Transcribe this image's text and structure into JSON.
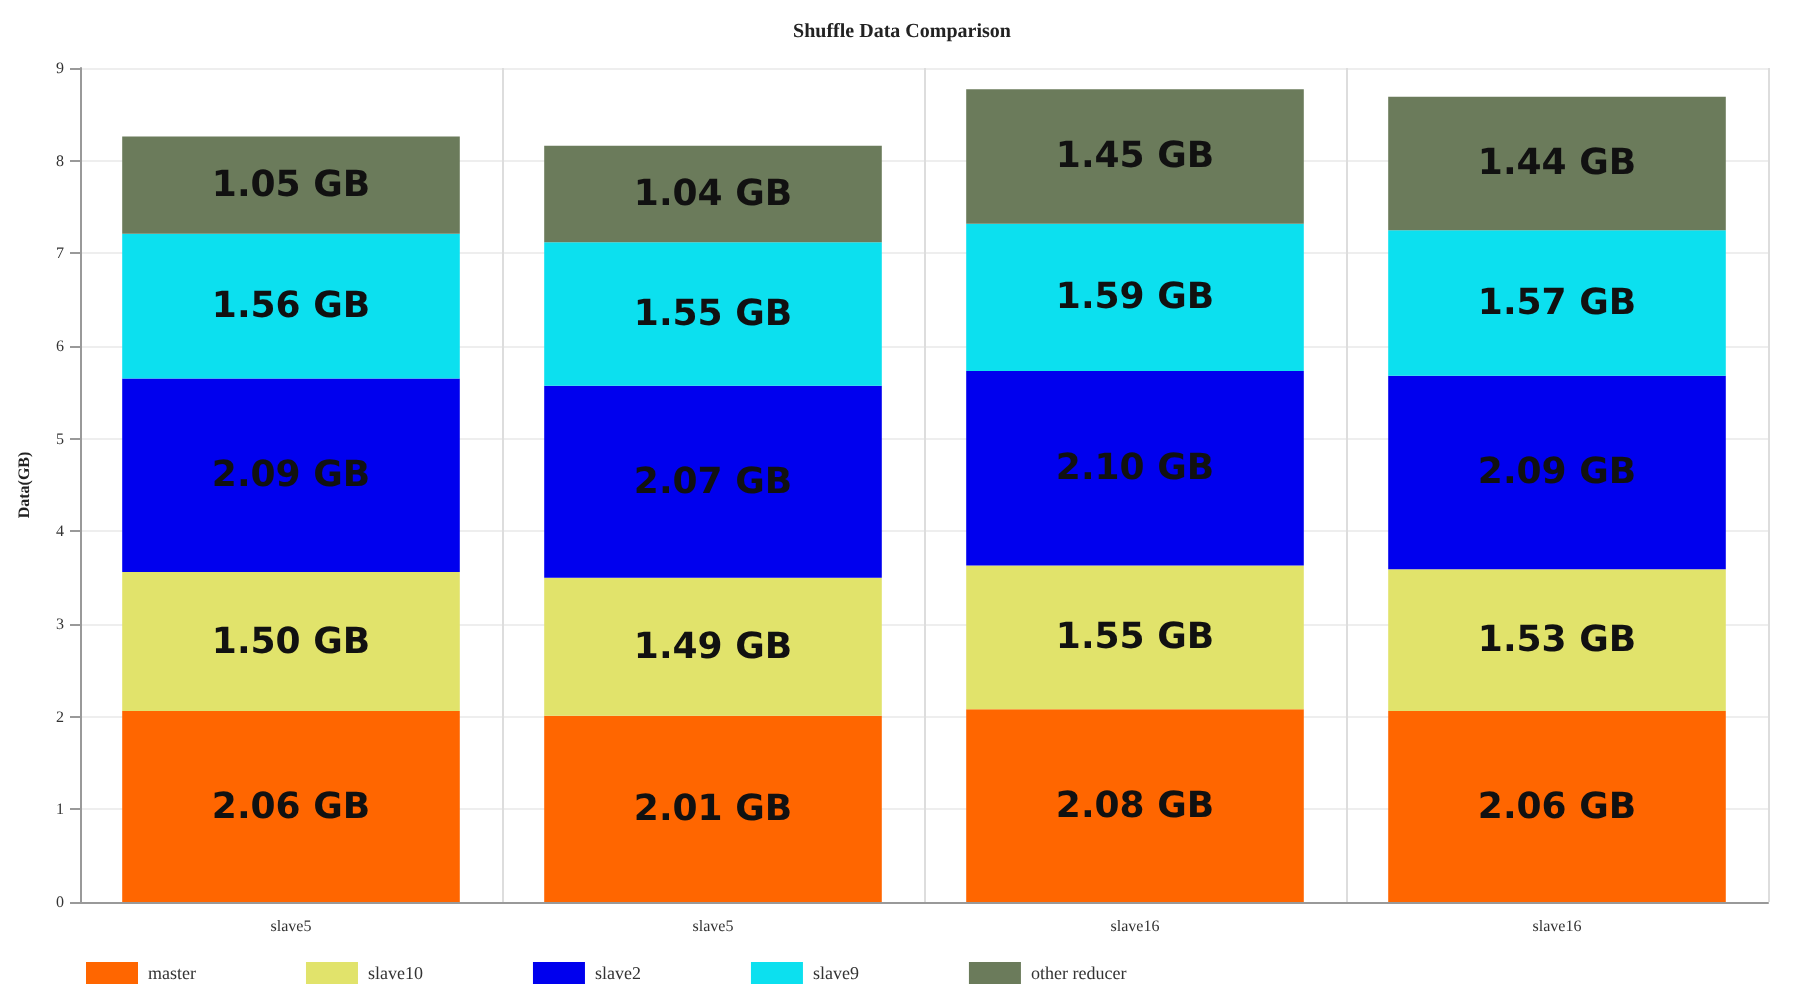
{
  "chart_data": {
    "type": "bar",
    "title": "Shuffle Data Comparison",
    "ylabel": "Data(GB)",
    "stacked": true,
    "categories": [
      "slave5",
      "slave5",
      "slave16",
      "slave16"
    ],
    "series": [
      {
        "name": "master",
        "color": "#ff6600",
        "values": [
          2.06,
          2.01,
          2.08,
          2.06
        ],
        "value_labels": [
          "2.06 GB",
          "2.01 GB",
          "2.08 GB",
          "2.06 GB"
        ]
      },
      {
        "name": "slave10",
        "color": "#e1e36b",
        "values": [
          1.5,
          1.49,
          1.55,
          1.53
        ],
        "value_labels": [
          "1.50 GB",
          "1.49 GB",
          "1.55 GB",
          "1.53 GB"
        ]
      },
      {
        "name": "slave2",
        "color": "#0000ee",
        "values": [
          2.09,
          2.07,
          2.1,
          2.09
        ],
        "value_labels": [
          "2.09 GB",
          "2.07 GB",
          "2.10 GB",
          "2.09 GB"
        ]
      },
      {
        "name": "slave9",
        "color": "#0ce0ef",
        "values": [
          1.56,
          1.55,
          1.59,
          1.57
        ],
        "value_labels": [
          "1.56 GB",
          "1.55 GB",
          "1.59 GB",
          "1.57 GB"
        ]
      },
      {
        "name": "other reducer",
        "color": "#6b7b5b",
        "values": [
          1.05,
          1.04,
          1.45,
          1.44
        ],
        "value_labels": [
          "1.05 GB",
          "1.04 GB",
          "1.45 GB",
          "1.44 GB"
        ]
      }
    ],
    "ylim": [
      0,
      9
    ],
    "yticks": [
      0,
      1,
      2,
      3,
      4,
      5,
      6,
      7,
      8,
      9
    ],
    "grid": true,
    "legend": "bottom left"
  }
}
